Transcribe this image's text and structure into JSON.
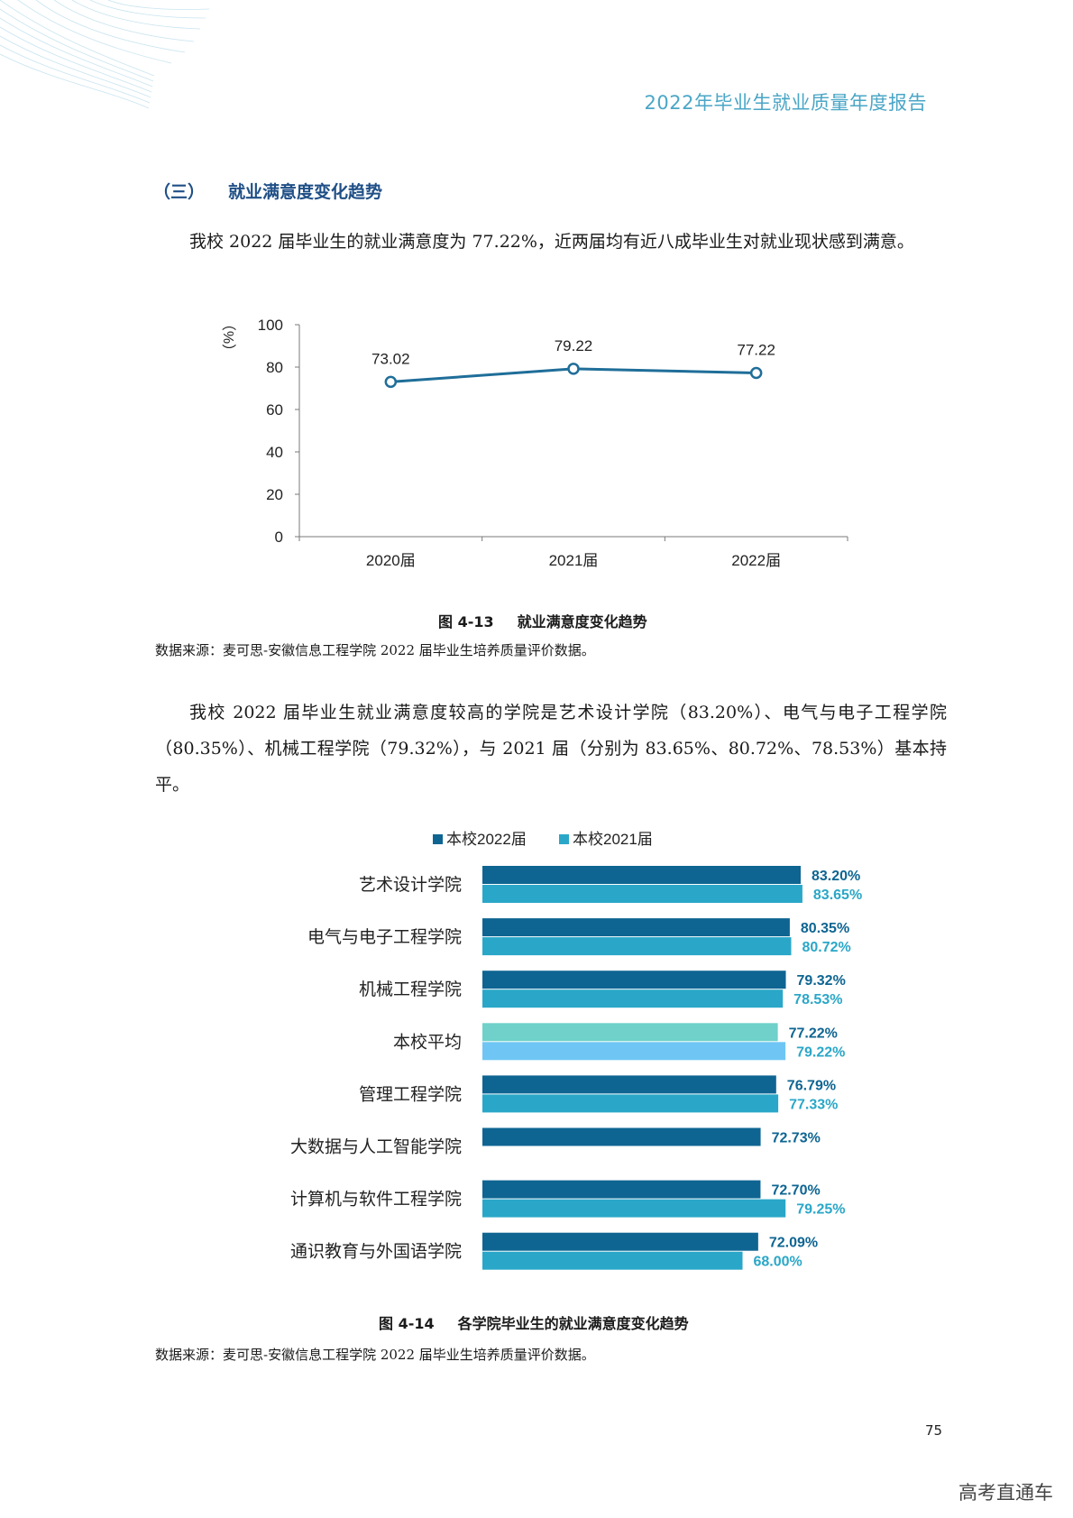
{
  "header": {
    "title": "2022年毕业生就业质量年度报告"
  },
  "section": {
    "number": "（三）",
    "title": "就业满意度变化趋势"
  },
  "para1": "我校 2022 届毕业生的就业满意度为 77.22%，近两届均有近八成毕业生对就业现状感到满意。",
  "para2": "我校 2022 届毕业生就业满意度较高的学院是艺术设计学院（83.20%）、电气与电子工程学院（80.35%）、机械工程学院（79.32%），与 2021 届（分别为 83.65%、80.72%、78.53%）基本持平。",
  "figure1": {
    "number": "图 4-13",
    "title": "就业满意度变化趋势"
  },
  "source1": "数据来源：麦可思-安徽信息工程学院 2022 届毕业生培养质量评价数据。",
  "figure2": {
    "number": "图 4-14",
    "title": "各学院毕业生的就业满意度变化趋势"
  },
  "source2": "数据来源：麦可思-安徽信息工程学院 2022 届毕业生培养质量评价数据。",
  "page_number": "75",
  "watermark": "高考直通车",
  "chart_data": [
    {
      "type": "line",
      "x": [
        "2020届",
        "2021届",
        "2022届"
      ],
      "series": [
        {
          "values": [
            73.02,
            79.22,
            77.22
          ]
        }
      ],
      "value_labels": [
        "73.02",
        "79.22",
        "77.22"
      ],
      "ylabel": "（%）",
      "ylim": [
        0,
        100
      ],
      "yticks": [
        "0",
        "20",
        "40",
        "60",
        "80",
        "100"
      ],
      "grid": false,
      "color": "#1f6e99"
    },
    {
      "type": "bar",
      "orientation": "horizontal",
      "categories": [
        "艺术设计学院",
        "电气与电子工程学院",
        "机械工程学院",
        "本校平均",
        "管理工程学院",
        "大数据与人工智能学院",
        "计算机与软件工程学院",
        "通识教育与外国语学院"
      ],
      "series": [
        {
          "name": "本校2022届",
          "values": [
            83.2,
            80.35,
            79.32,
            77.22,
            76.79,
            72.73,
            72.7,
            72.09
          ],
          "labels": [
            "83.20%",
            "80.35%",
            "79.32%",
            "77.22%",
            "76.79%",
            "72.73%",
            "72.70%",
            "72.09%"
          ]
        },
        {
          "name": "本校2021届",
          "values": [
            83.65,
            80.72,
            78.53,
            79.22,
            77.33,
            null,
            79.25,
            68.0
          ],
          "labels": [
            "83.65%",
            "80.72%",
            "78.53%",
            "79.22%",
            "77.33%",
            "",
            "79.25%",
            "68.00%"
          ]
        }
      ],
      "legend_position": "top",
      "colors": {
        "s2022": "#0e6592",
        "s2021": "#2aa7c8",
        "avg2022": "#6fd1c9",
        "avg2021": "#6fc6f4"
      }
    }
  ]
}
